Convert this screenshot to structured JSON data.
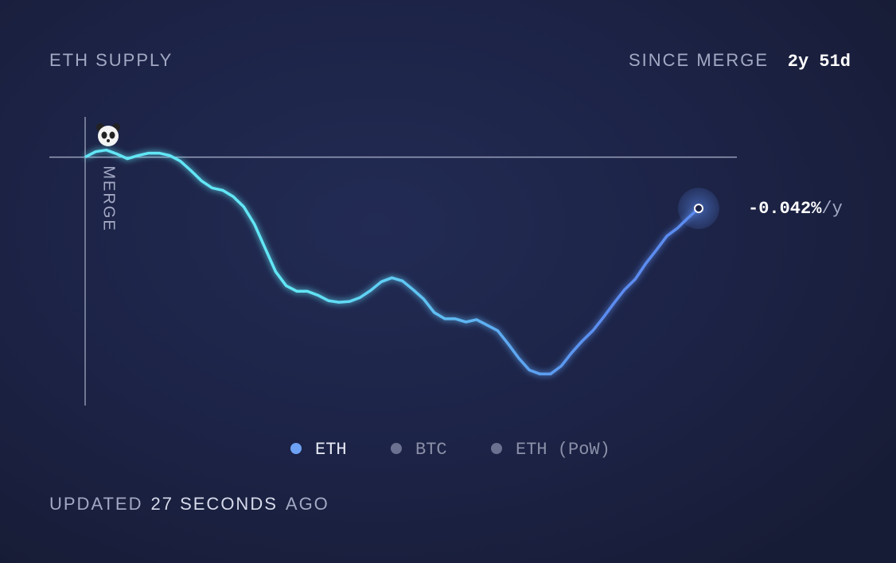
{
  "chart_data": {
    "type": "line",
    "title": "ETH SUPPLY",
    "period_label": "SINCE MERGE",
    "period_value": "2y 51d",
    "marker_label": "MERGE",
    "annotation_value": "-0.042%",
    "annotation_unit": "/y",
    "footer": {
      "prefix": "UPDATED",
      "time": "27 SECONDS",
      "suffix": "AGO"
    },
    "series": [
      {
        "name": "ETH",
        "color_start": "#62e6f5",
        "color_end": "#5b8cf0",
        "values": [
          0,
          0.07,
          0.09,
          0.04,
          -0.02,
          0.02,
          0.05,
          0.05,
          0.02,
          -0.05,
          -0.17,
          -0.3,
          -0.39,
          -0.42,
          -0.5,
          -0.63,
          -0.85,
          -1.15,
          -1.45,
          -1.63,
          -1.7,
          -1.7,
          -1.75,
          -1.82,
          -1.84,
          -1.83,
          -1.78,
          -1.69,
          -1.58,
          -1.53,
          -1.57,
          -1.68,
          -1.8,
          -1.97,
          -2.05,
          -2.05,
          -2.09,
          -2.06,
          -2.13,
          -2.2,
          -2.37,
          -2.55,
          -2.7,
          -2.75,
          -2.75,
          -2.65,
          -2.48,
          -2.33,
          -2.2,
          -2.03,
          -1.85,
          -1.68,
          -1.55,
          -1.35,
          -1.18,
          -1.0,
          -0.9,
          -0.77,
          -0.65
        ]
      }
    ],
    "legend": [
      {
        "name": "ETH",
        "color": "#6ea2f5"
      },
      {
        "name": "BTC",
        "color": "#6b7190"
      },
      {
        "name": "ETH (PoW)",
        "color": "#6b7190"
      }
    ],
    "baseline": 0,
    "ylim": [
      -3.15,
      0.48
    ]
  }
}
